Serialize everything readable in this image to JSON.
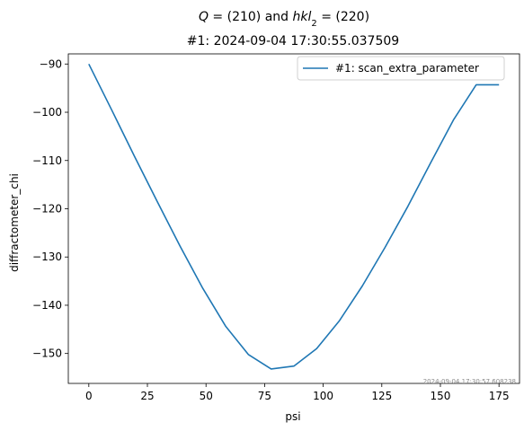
{
  "figure": {
    "suptitle_parts": [
      {
        "t": "Q",
        "italic": true
      },
      {
        "t": " = (210) and ",
        "italic": false
      },
      {
        "t": "hkl",
        "italic": true
      },
      {
        "t": "2",
        "sub": true
      },
      {
        "t": " = (220)",
        "italic": false
      }
    ],
    "timestamp": "2024-09-04 17:30:57.608238"
  },
  "chart_data": {
    "type": "line",
    "title": "#1: 2024-09-04 17:30:55.037509",
    "xlabel": "psi",
    "ylabel": "diffractometer_chi",
    "xlim": [
      -8.75,
      183.75
    ],
    "ylim": [
      -156.2,
      -87.9
    ],
    "xticks": [
      0,
      25,
      50,
      75,
      100,
      125,
      150,
      175
    ],
    "yticks": [
      -150,
      -140,
      -130,
      -120,
      -110,
      -100,
      -90
    ],
    "legend": {
      "location": "upper right"
    },
    "series": [
      {
        "name": "#1: scan_extra_parameter",
        "color": "#1f77b4",
        "x": [
          0,
          9.72,
          19.44,
          29.17,
          38.89,
          48.61,
          58.33,
          68.06,
          77.78,
          87.5,
          97.22,
          106.94,
          116.67,
          126.39,
          136.11,
          145.83,
          155.56,
          165.28,
          175
        ],
        "y": [
          -90.0,
          -99.5,
          -109.1,
          -118.5,
          -127.7,
          -136.5,
          -144.3,
          -150.2,
          -153.2,
          -152.6,
          -149.0,
          -143.2,
          -136.0,
          -128.0,
          -119.5,
          -110.5,
          -101.6,
          -94.3,
          -94.3
        ]
      }
    ]
  }
}
